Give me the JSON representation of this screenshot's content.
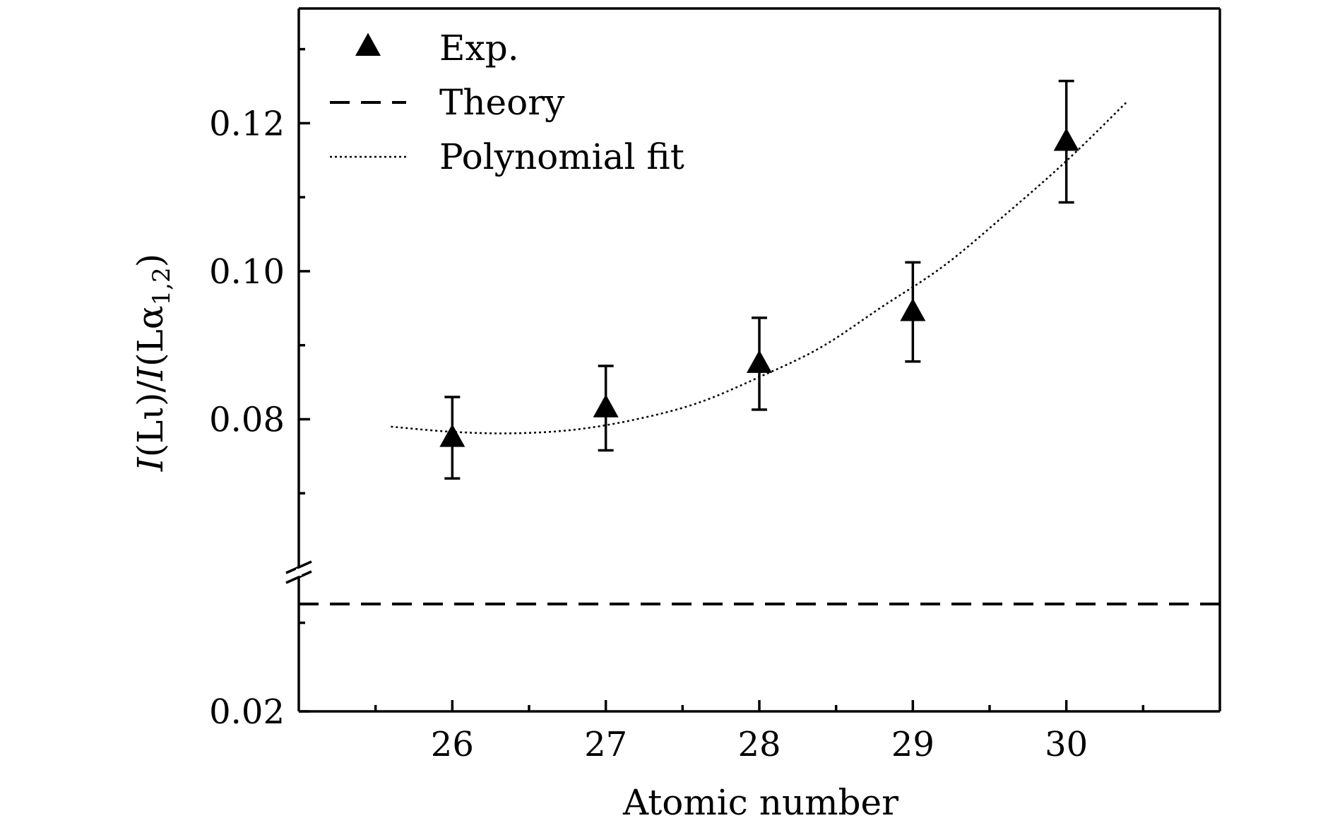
{
  "chart_data": {
    "type": "scatter",
    "xlabel": "Atomic number",
    "ylabel": "I(Lι)/I(Lα1,2)",
    "ylabel_parts": {
      "italic_1": "I",
      "part_1": "(Lι)/",
      "italic_2": "I",
      "part_2": "(Lα",
      "subscript": "1,2",
      "part_3": ")"
    },
    "xlim": [
      25.0,
      31.0
    ],
    "x_ticks": [
      26,
      27,
      28,
      29,
      30
    ],
    "x_tick_labels": [
      "26",
      "27",
      "28",
      "29",
      "30"
    ],
    "x_minor_ticks": [
      25.5,
      26.5,
      27.5,
      28.5,
      29.5,
      30.5
    ],
    "y_axis_broken": true,
    "y_break_between": [
      0.025,
      0.06
    ],
    "y_lower_segment": [
      0.02,
      0.025
    ],
    "y_upper_segment": [
      0.06,
      0.1355
    ],
    "y_tick_labels": [
      "0.02",
      "0.08",
      "0.10",
      "0.12"
    ],
    "y_ticks": [
      0.02,
      0.08,
      0.1,
      0.12
    ],
    "y_minor_ticks": [
      0.07,
      0.09,
      0.11,
      0.13
    ],
    "y_lower_minor_ticks": [
      0.0233
    ],
    "grid": false,
    "legend_position": "top-left",
    "series": [
      {
        "name": "Exp.",
        "kind": "scatter-errorbar",
        "marker": "triangle",
        "color": "#000000",
        "x": [
          26,
          27,
          28,
          29,
          30
        ],
        "y": [
          0.0775,
          0.0815,
          0.0875,
          0.0945,
          0.1175
        ],
        "yerr": [
          0.0055,
          0.0057,
          0.0062,
          0.0067,
          0.0082
        ]
      },
      {
        "name": "Theory",
        "kind": "line",
        "style": "dashed",
        "color": "#000000",
        "x": [
          25.0,
          31.0
        ],
        "y": [
          0.024,
          0.024
        ]
      },
      {
        "name": "Polynomial fit",
        "kind": "line",
        "style": "dotted",
        "color": "#000000",
        "x": [
          25.6,
          26.0,
          26.4,
          26.8,
          27.2,
          27.6,
          28.0,
          28.4,
          28.8,
          29.2,
          29.6,
          30.0,
          30.4
        ],
        "y": [
          0.079,
          0.0783,
          0.0781,
          0.0786,
          0.08,
          0.0822,
          0.0857,
          0.0897,
          0.0952,
          0.1007,
          0.1076,
          0.1149,
          0.123
        ]
      }
    ]
  }
}
